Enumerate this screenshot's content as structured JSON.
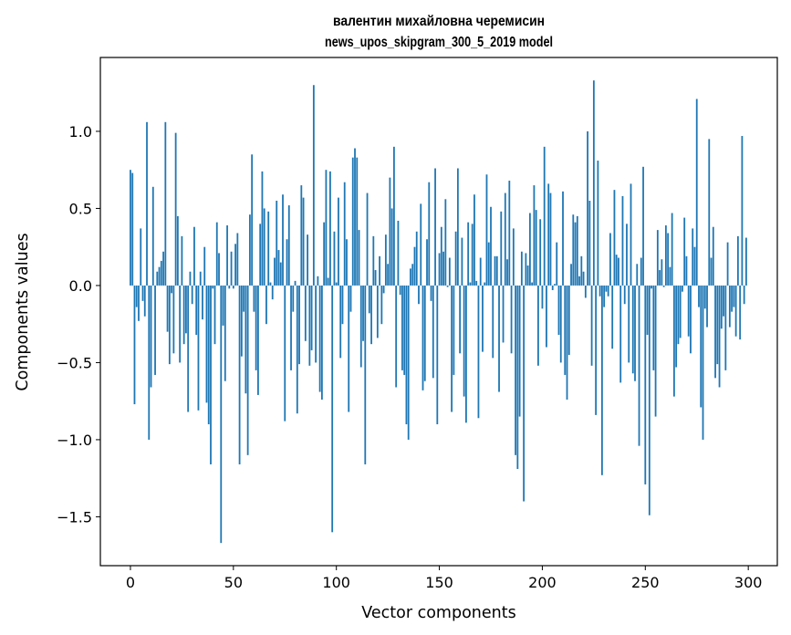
{
  "chart_data": {
    "type": "bar",
    "title": [
      "валентин михайловна черемисин",
      "news_upos_skipgram_300_5_2019 model"
    ],
    "xlabel": "Vector components",
    "ylabel": "Components values",
    "xlim": [
      -14.6,
      314.1
    ],
    "ylim": [
      -1.817,
      1.479
    ],
    "xticks": [
      0,
      50,
      100,
      150,
      200,
      250,
      300
    ],
    "xtick_labels": [
      "0",
      "50",
      "100",
      "150",
      "200",
      "250",
      "300"
    ],
    "yticks": [
      -1.5,
      -1.0,
      -0.5,
      0.0,
      0.5,
      1.0
    ],
    "ytick_labels": [
      "−1.5",
      "−1.0",
      "−0.5",
      "0.0",
      "0.5",
      "1.0"
    ],
    "grid": false,
    "bar_color": "#1f77b4",
    "values": [
      0.75,
      0.73,
      -0.77,
      -0.14,
      -0.23,
      0.37,
      -0.1,
      -0.2,
      1.06,
      -1.0,
      -0.66,
      0.64,
      -0.58,
      0.09,
      0.12,
      0.16,
      0.22,
      1.06,
      -0.3,
      -0.51,
      -0.05,
      -0.44,
      0.99,
      0.45,
      -0.5,
      0.32,
      -0.38,
      -0.31,
      -0.82,
      0.09,
      -0.12,
      0.38,
      -0.32,
      -0.81,
      0.09,
      -0.22,
      0.25,
      -0.76,
      -0.9,
      -1.16,
      -0.02,
      -0.38,
      0.41,
      0.21,
      -1.67,
      -0.26,
      -0.62,
      0.39,
      -0.02,
      0.22,
      -0.02,
      0.27,
      0.34,
      -1.16,
      -0.46,
      -0.17,
      -0.7,
      -1.1,
      0.46,
      0.85,
      -0.17,
      -0.55,
      -0.71,
      0.4,
      0.74,
      0.5,
      -0.25,
      0.48,
      0.02,
      -0.09,
      0.18,
      0.55,
      0.23,
      0.15,
      0.59,
      -0.88,
      0.3,
      0.52,
      -0.55,
      -0.17,
      0.03,
      -0.83,
      -0.51,
      0.65,
      0.57,
      -0.36,
      0.33,
      -0.52,
      -0.42,
      1.3,
      -0.5,
      0.06,
      -0.69,
      -0.74,
      0.41,
      0.75,
      0.05,
      0.74,
      -1.6,
      0.35,
      0.02,
      0.57,
      -0.47,
      -0.25,
      0.67,
      0.3,
      -0.82,
      -0.17,
      0.83,
      0.89,
      0.83,
      0.36,
      -0.53,
      -0.36,
      -1.16,
      0.6,
      -0.18,
      -0.38,
      0.32,
      0.1,
      -0.34,
      0.19,
      -0.25,
      -0.05,
      0.33,
      0.14,
      0.7,
      0.5,
      0.9,
      -0.66,
      0.42,
      -0.06,
      -0.55,
      -0.58,
      -0.9,
      -1.0,
      0.11,
      0.14,
      0.25,
      0.35,
      -0.12,
      0.53,
      -0.68,
      -0.62,
      0.3,
      0.67,
      -0.1,
      -0.6,
      0.76,
      -0.9,
      0.21,
      0.38,
      0.22,
      0.56,
      -0.01,
      0.18,
      -0.82,
      -0.58,
      0.35,
      0.76,
      -0.44,
      0.31,
      -0.72,
      -0.89,
      0.41,
      0.02,
      0.4,
      0.59,
      0.03,
      -0.86,
      0.18,
      -0.43,
      0.02,
      0.72,
      0.28,
      0.51,
      -0.47,
      0.19,
      0.19,
      -0.69,
      0.48,
      -0.37,
      0.6,
      0.17,
      0.68,
      -0.44,
      0.37,
      -1.1,
      -1.19,
      -0.85,
      0.22,
      -1.4,
      0.21,
      0.13,
      0.47,
      0.02,
      0.65,
      0.49,
      -0.52,
      0.43,
      -0.15,
      0.9,
      -0.4,
      0.66,
      0.6,
      -0.03,
      0.01,
      0.28,
      -0.32,
      -0.5,
      0.61,
      -0.58,
      -0.74,
      -0.45,
      0.14,
      0.46,
      0.41,
      0.45,
      0.06,
      0.19,
      0.09,
      -0.08,
      1.0,
      0.55,
      -0.52,
      1.33,
      -0.84,
      0.81,
      -0.07,
      -1.23,
      -0.14,
      -0.04,
      -0.07,
      0.34,
      -0.41,
      0.62,
      0.2,
      0.18,
      -0.63,
      0.58,
      -0.12,
      0.4,
      -0.5,
      0.66,
      -0.57,
      -0.62,
      0.14,
      -1.04,
      0.18,
      0.77,
      -1.29,
      -0.32,
      -1.49,
      -0.02,
      -0.55,
      -0.85,
      0.36,
      0.1,
      0.17,
      -0.01,
      0.39,
      0.34,
      0.12,
      0.47,
      -0.72,
      -0.53,
      -0.38,
      -0.34,
      -0.04,
      0.44,
      0.19,
      -0.33,
      -0.44,
      0.37,
      0.25,
      1.21,
      -0.14,
      -0.79,
      -1.0,
      -0.15,
      -0.27,
      0.95,
      0.18,
      0.38,
      -0.6,
      -0.51,
      -0.66,
      -0.28,
      -0.2,
      -0.55,
      0.28,
      -0.27,
      -0.17,
      -0.14,
      -0.33,
      0.32,
      -0.35,
      0.97,
      -0.12,
      0.31
    ]
  }
}
